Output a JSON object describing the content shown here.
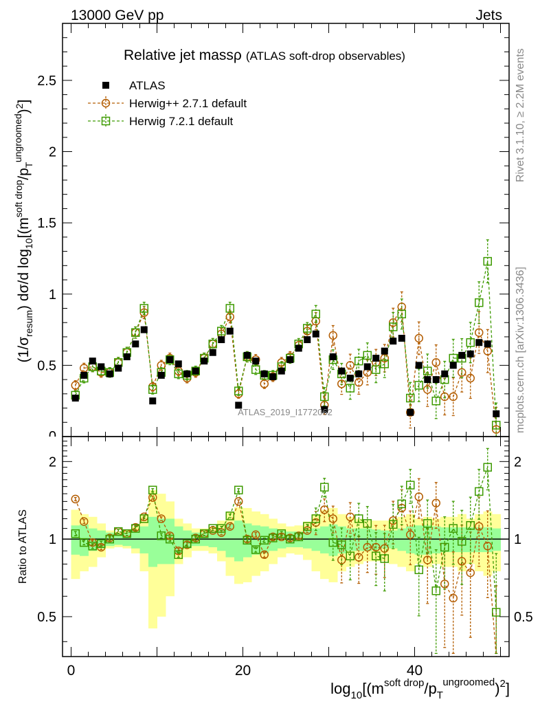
{
  "header": {
    "energy": "13000 GeV pp",
    "process": "Jets"
  },
  "side_labels": {
    "rivet": "Rivet 3.1.10, ≥ 2.2M events",
    "mcplots": "mcplots.cern.ch [arXiv:1306.3436]"
  },
  "watermark": "ATLAS_2019_I1772062",
  "chart_data": [
    {
      "type": "scatter",
      "panel": "main",
      "title": "Relative jet massρ",
      "subtitle": "(ATLAS soft-drop observables)",
      "ylabel": "(1/σ_resum) dσ/d log10[(m^soft drop/p_T^ungroomed)^2]",
      "xlim": [
        -1,
        51
      ],
      "ylim": [
        0,
        2.9
      ],
      "y_ticks": [
        0.5,
        1,
        1.5,
        2,
        2.5
      ],
      "y_tick_labels": [
        "0.5",
        "1",
        "1.5",
        "2",
        "2.5"
      ],
      "y_tick_label_cut": "0",
      "legend": [
        {
          "label": "ATLAS",
          "color": "#000000",
          "marker": "square-filled"
        },
        {
          "label": "Herwig++ 2.7.1 default",
          "color": "#b35c00",
          "marker": "circle-open"
        },
        {
          "label": "Herwig 7.2.1 default",
          "color": "#3d9a00",
          "marker": "square-open"
        }
      ],
      "x": [
        0.5,
        1.5,
        2.5,
        3.5,
        4.5,
        5.5,
        6.5,
        7.5,
        8.5,
        9.5,
        10.5,
        11.5,
        12.5,
        13.5,
        14.5,
        15.5,
        16.5,
        17.5,
        18.5,
        19.5,
        20.5,
        21.5,
        22.5,
        23.5,
        24.5,
        25.5,
        26.5,
        27.5,
        28.5,
        29.5,
        30.5,
        31.5,
        32.5,
        33.5,
        34.5,
        35.5,
        36.5,
        37.5,
        38.5,
        39.5,
        40.5,
        41.5,
        42.5,
        43.5,
        44.5,
        45.5,
        46.5,
        47.5,
        48.5,
        49.5
      ],
      "series": [
        {
          "name": "ATLAS",
          "values": [
            0.27,
            0.43,
            0.53,
            0.49,
            0.44,
            0.48,
            0.56,
            0.65,
            0.75,
            0.25,
            0.43,
            0.54,
            0.51,
            0.44,
            0.46,
            0.53,
            0.59,
            0.68,
            0.74,
            0.22,
            0.57,
            0.53,
            0.44,
            0.42,
            0.46,
            0.54,
            0.62,
            0.68,
            0.72,
            0.19,
            0.56,
            0.46,
            0.41,
            0.44,
            0.49,
            0.55,
            0.6,
            0.67,
            0.69,
            0.17,
            0.5,
            0.4,
            0.4,
            0.44,
            0.5,
            0.57,
            0.58,
            0.66,
            0.65,
            0.16
          ]
        },
        {
          "name": "Herwig++ 2.7.1 default",
          "values": [
            0.36,
            0.48,
            0.49,
            0.45,
            0.45,
            0.52,
            0.59,
            0.73,
            0.87,
            0.35,
            0.5,
            0.55,
            0.46,
            0.41,
            0.45,
            0.55,
            0.65,
            0.72,
            0.84,
            0.3,
            0.56,
            0.54,
            0.37,
            0.42,
            0.52,
            0.56,
            0.64,
            0.74,
            0.81,
            0.22,
            0.71,
            0.37,
            0.5,
            0.38,
            0.45,
            0.52,
            0.55,
            0.8,
            0.91,
            0.17,
            0.69,
            0.33,
            0.52,
            0.28,
            0.28,
            0.45,
            0.41,
            0.73,
            0.6,
            0.05
          ]
        },
        {
          "name": "Herwig 7.2.1 default",
          "values": [
            0.29,
            0.41,
            0.49,
            0.46,
            0.45,
            0.52,
            0.59,
            0.73,
            0.9,
            0.33,
            0.45,
            0.54,
            0.44,
            0.43,
            0.46,
            0.55,
            0.65,
            0.74,
            0.9,
            0.32,
            0.56,
            0.47,
            0.43,
            0.43,
            0.49,
            0.55,
            0.65,
            0.76,
            0.86,
            0.28,
            0.54,
            0.44,
            0.34,
            0.53,
            0.57,
            0.47,
            0.51,
            0.77,
            0.86,
            0.27,
            0.36,
            0.46,
            0.25,
            0.4,
            0.55,
            0.55,
            0.66,
            0.94,
            1.23,
            0.08
          ]
        }
      ]
    },
    {
      "type": "scatter",
      "panel": "ratio",
      "ylabel": "Ratio to ATLAS",
      "xlabel": "log10[(m^soft drop/p_T^ungroomed)^2]",
      "xlim": [
        -1,
        51
      ],
      "ylim": [
        0.35,
        2.5
      ],
      "y_ticks": [
        0.5,
        1,
        2
      ],
      "y_tick_labels": [
        "0.5",
        "1",
        "2"
      ],
      "x_ticks": [
        0,
        20,
        40
      ],
      "x_tick_labels": [
        "0",
        "20",
        "40"
      ],
      "band_1sigma_halfwidth": [
        0.13,
        0.14,
        0.1,
        0.08,
        0.06,
        0.05,
        0.06,
        0.08,
        0.12,
        0.22,
        0.2,
        0.2,
        0.12,
        0.08,
        0.06,
        0.06,
        0.07,
        0.1,
        0.15,
        0.18,
        0.15,
        0.13,
        0.12,
        0.1,
        0.08,
        0.07,
        0.07,
        0.08,
        0.1,
        0.12,
        0.14,
        0.12,
        0.1,
        0.1,
        0.1,
        0.09,
        0.08,
        0.08,
        0.1,
        0.12,
        0.13,
        0.13,
        0.12,
        0.11,
        0.11,
        0.11,
        0.11,
        0.11,
        0.11,
        0.1
      ],
      "band_total_halfwidth": [
        0.3,
        0.25,
        0.22,
        0.15,
        0.08,
        0.07,
        0.08,
        0.12,
        0.25,
        0.55,
        0.5,
        0.4,
        0.2,
        0.15,
        0.1,
        0.1,
        0.12,
        0.18,
        0.28,
        0.33,
        0.32,
        0.28,
        0.25,
        0.2,
        0.15,
        0.12,
        0.13,
        0.17,
        0.25,
        0.3,
        0.32,
        0.25,
        0.22,
        0.2,
        0.18,
        0.18,
        0.18,
        0.2,
        0.22,
        0.25,
        0.2,
        0.22,
        0.2,
        0.22,
        0.22,
        0.25,
        0.2,
        0.25,
        0.28,
        0.25
      ],
      "series": [
        {
          "name": "Herwig++ 2.7.1 default",
          "values": [
            1.43,
            1.17,
            0.97,
            0.93,
            1.01,
            1.07,
            1.05,
            1.11,
            1.22,
            1.45,
            1.2,
            1.03,
            0.9,
            0.95,
            1.01,
            1.05,
            1.08,
            1.06,
            1.12,
            1.4,
            1.0,
            1.04,
            0.87,
            1.02,
            1.02,
            1.01,
            1.03,
            1.08,
            1.16,
            1.3,
            1.2,
            0.83,
            1.22,
            0.85,
            0.93,
            0.93,
            0.92,
            1.18,
            1.32,
            1.04,
            1.46,
            0.83,
            1.38,
            0.67,
            0.59,
            0.82,
            0.74,
            1.12,
            0.94,
            0.3
          ]
        },
        {
          "name": "Herwig 7.2.1 default",
          "values": [
            1.05,
            0.97,
            0.94,
            0.96,
            1.0,
            1.07,
            1.05,
            1.1,
            1.2,
            1.55,
            1.03,
            1.0,
            0.87,
            0.96,
            1.0,
            1.05,
            1.1,
            1.1,
            1.23,
            1.55,
            0.99,
            0.91,
            0.99,
            1.01,
            1.05,
            1.0,
            1.02,
            1.12,
            1.2,
            1.59,
            0.97,
            0.95,
            0.86,
            1.2,
            1.15,
            0.86,
            0.84,
            1.14,
            1.37,
            1.62,
            0.76,
            1.15,
            0.63,
            0.93,
            1.1,
            0.98,
            1.13,
            1.53,
            1.9,
            0.52
          ]
        }
      ]
    }
  ]
}
